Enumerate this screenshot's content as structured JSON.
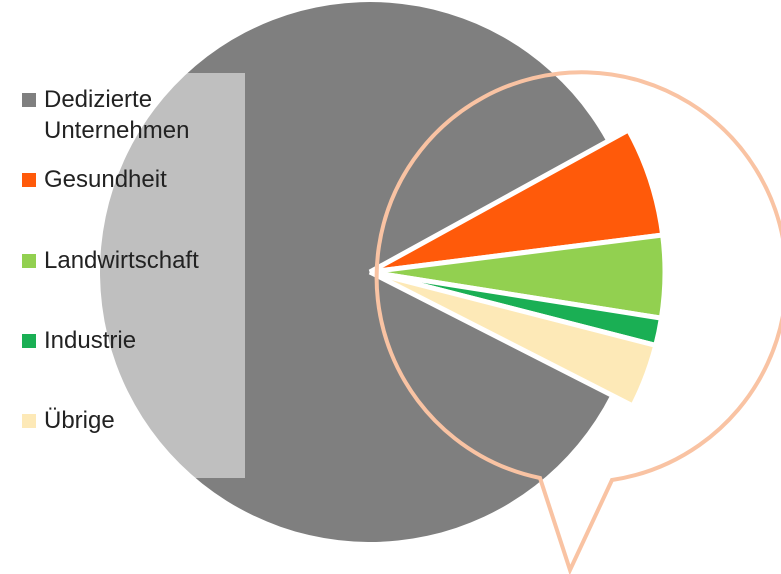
{
  "chart_data": {
    "type": "pie",
    "categories": [
      "Dedizierte Unternehmen",
      "Gesundheit",
      "Landwirtschaft",
      "Industrie",
      "Übrige"
    ],
    "values": [
      84.5,
      6,
      4.5,
      1.5,
      3.5
    ],
    "colors": [
      "#7f7f7f",
      "#ff5a0a",
      "#92d050",
      "#1aaf54",
      "#fde9b7"
    ]
  }
}
